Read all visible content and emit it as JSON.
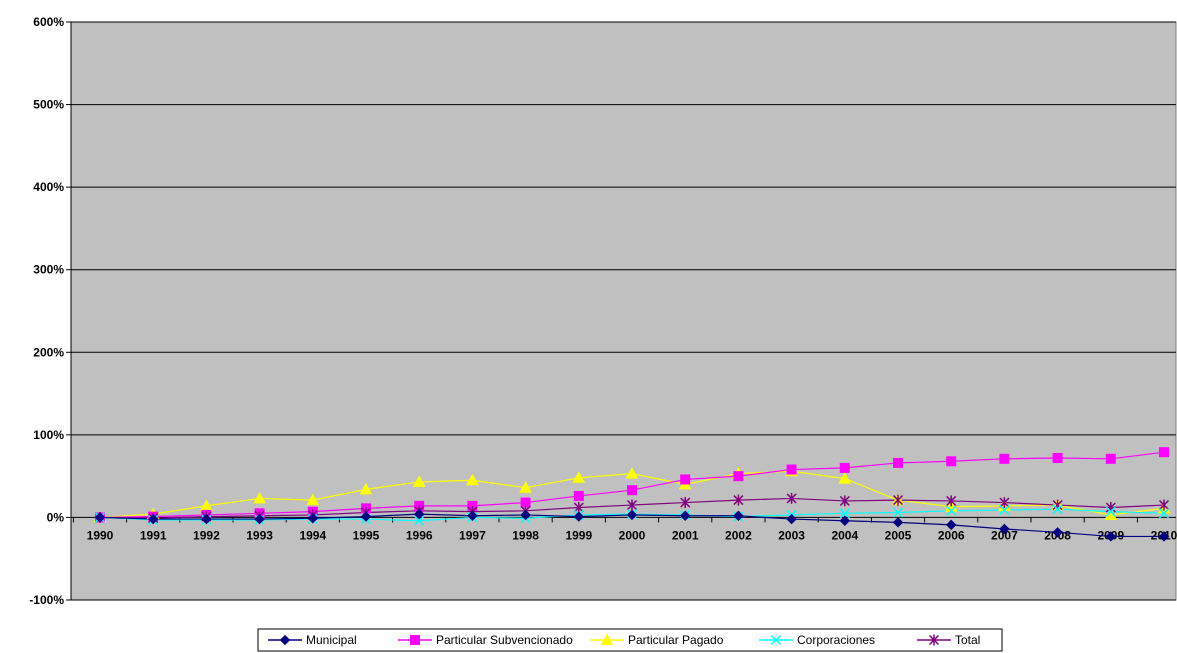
{
  "chart_data": {
    "type": "line",
    "title": "",
    "xlabel": "",
    "ylabel": "",
    "ylim": [
      -100,
      600
    ],
    "y_ticks": [
      "600%",
      "500%",
      "400%",
      "300%",
      "200%",
      "100%",
      "0%",
      "-100%"
    ],
    "y_tick_values": [
      600,
      500,
      400,
      300,
      200,
      100,
      0,
      -100
    ],
    "categories": [
      "1990",
      "1991",
      "1992",
      "1993",
      "1994",
      "1995",
      "1996",
      "1997",
      "1998",
      "1999",
      "2000",
      "2001",
      "2002",
      "2003",
      "2004",
      "2005",
      "2006",
      "2007",
      "2008",
      "2009",
      "2010"
    ],
    "grid": "horizontal",
    "legend_position": "bottom",
    "plot_background": "#C0C0C0",
    "series": [
      {
        "name": "Municipal",
        "color": "#000080",
        "marker": "diamond",
        "values": [
          0,
          -2,
          -2,
          -2,
          -1,
          1,
          4,
          2,
          3,
          1,
          3,
          2,
          2,
          -2,
          -4,
          -6,
          -9,
          -14,
          -18,
          -23,
          -23
        ]
      },
      {
        "name": "Particular Subvencionado",
        "color": "#FF00FF",
        "marker": "square",
        "values": [
          0,
          1,
          3,
          5,
          7,
          11,
          14,
          14,
          18,
          26,
          33,
          46,
          50,
          58,
          60,
          66,
          68,
          71,
          72,
          71,
          79
        ]
      },
      {
        "name": "Particular Pagado",
        "color": "#FFFF00",
        "marker": "triangle",
        "values": [
          0,
          4,
          14,
          23,
          21,
          34,
          43,
          45,
          36,
          48,
          53,
          40,
          53,
          56,
          47,
          21,
          13,
          14,
          15,
          3,
          11
        ]
      },
      {
        "name": "Corporaciones",
        "color": "#00FFFF",
        "marker": "x",
        "values": [
          0,
          -3,
          -3,
          -3,
          -2,
          -2,
          -4,
          0,
          -1,
          3,
          4,
          3,
          1,
          3,
          5,
          6,
          8,
          9,
          10,
          7,
          5
        ]
      },
      {
        "name": "Total",
        "color": "#800080",
        "marker": "asterisk",
        "values": [
          0,
          -1,
          1,
          2,
          3,
          6,
          8,
          7,
          8,
          12,
          15,
          18,
          21,
          23,
          20,
          21,
          20,
          18,
          15,
          12,
          15
        ]
      }
    ]
  }
}
